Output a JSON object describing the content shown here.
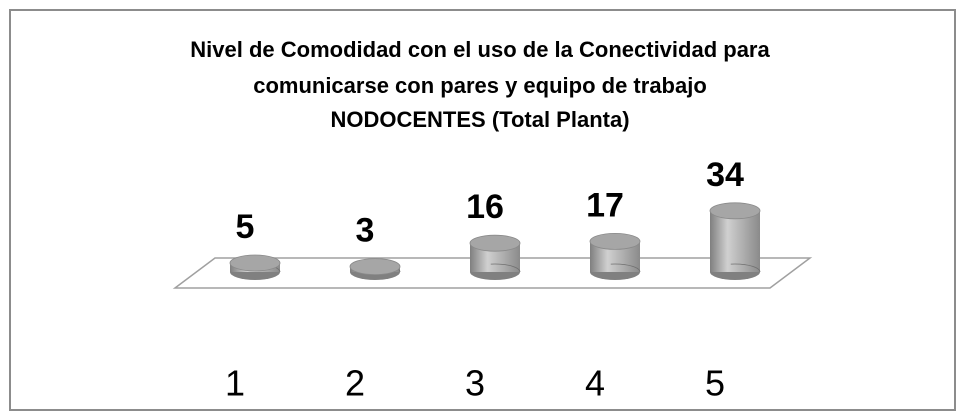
{
  "chart_data": {
    "type": "bar3d",
    "title": [
      "Nivel de Comodidad con el uso de la Conectividad para",
      "comunicarse con pares y equipo de trabajo",
      "NODOCENTES (Total Planta)"
    ],
    "categories": [
      "1",
      "2",
      "3",
      "4",
      "5"
    ],
    "values": [
      5,
      3,
      16,
      17,
      34
    ],
    "color": "#a6a6a6"
  }
}
